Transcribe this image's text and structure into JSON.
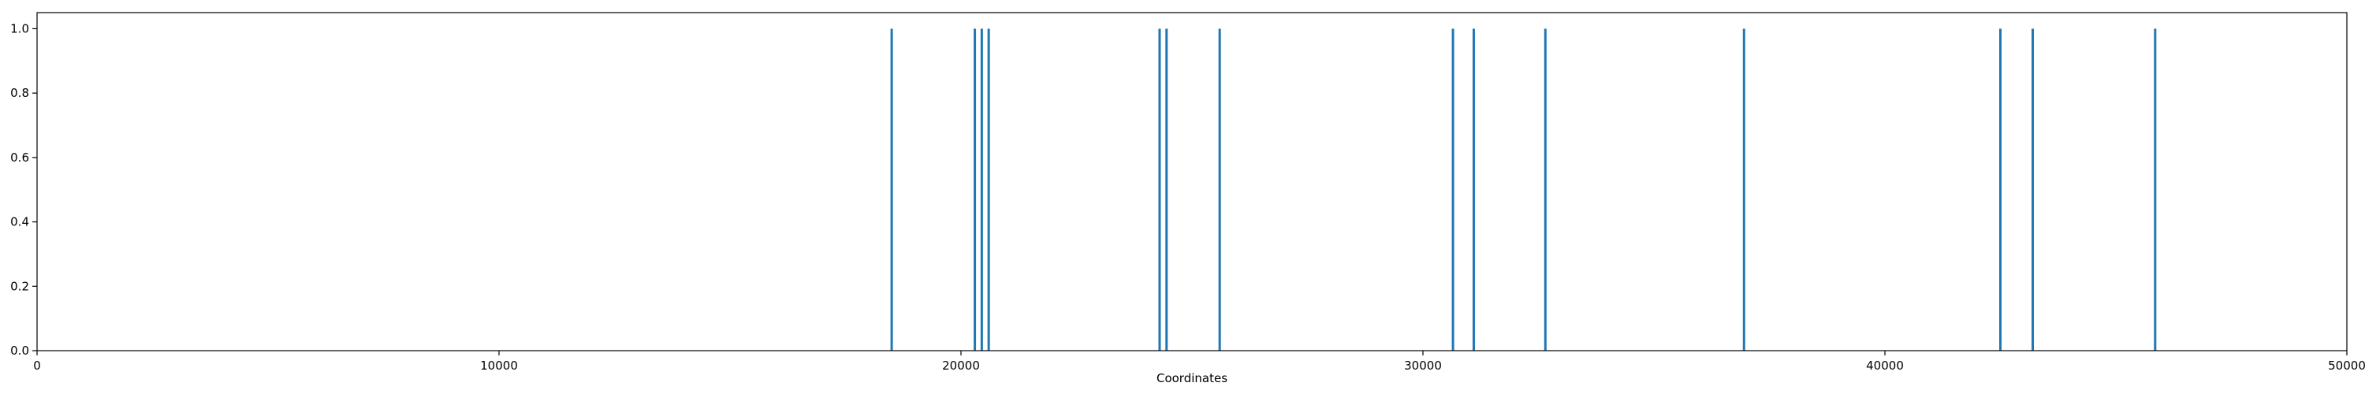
{
  "chart_data": {
    "type": "bar",
    "xlabel": "Coordinates",
    "ylabel": "",
    "xlim": [
      0,
      50000
    ],
    "ylim": [
      0,
      1.05
    ],
    "x_ticks": [
      0,
      10000,
      20000,
      30000,
      40000,
      50000
    ],
    "x_tick_labels": [
      "0",
      "10000",
      "20000",
      "30000",
      "40000",
      "50000"
    ],
    "y_ticks": [
      0.0,
      0.2,
      0.4,
      0.6,
      0.8,
      1.0
    ],
    "y_tick_labels": [
      "0.0",
      "0.2",
      "0.4",
      "0.6",
      "0.8",
      "1.0"
    ],
    "grid": false,
    "bar_color": "#1f77b4",
    "x": [
      18500,
      20300,
      20450,
      20600,
      24300,
      24450,
      25600,
      30650,
      31100,
      32650,
      36950,
      42500,
      43200,
      45850
    ],
    "values": [
      1,
      1,
      1,
      1,
      1,
      1,
      1,
      1,
      1,
      1,
      1,
      1,
      1,
      1
    ]
  }
}
